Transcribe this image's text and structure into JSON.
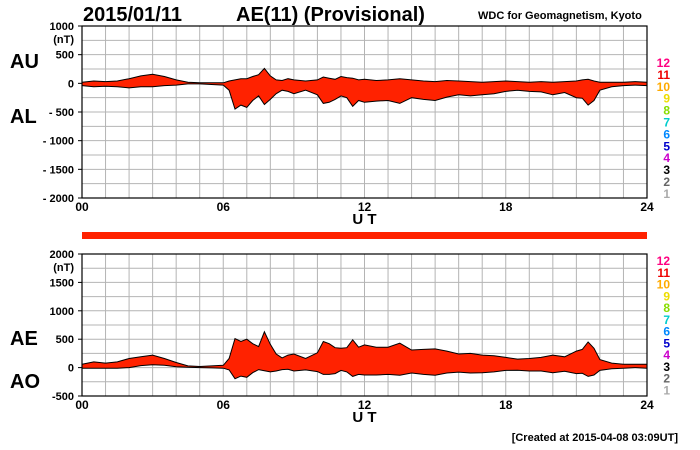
{
  "header": {
    "date": "2015/01/11",
    "title": "AE(11) (Provisional)",
    "organization": "WDC for Geomagnetism, Kyoto"
  },
  "footer": {
    "created": "[Created at 2015-04-08 03:09UT]"
  },
  "colors": {
    "fill": "#ff2200",
    "line": "#000000",
    "grid": "#b4b4b4",
    "band": "#ff2200"
  },
  "legend": [
    {
      "label": "12",
      "color": "#ff0080"
    },
    {
      "label": "11",
      "color": "#ee0000"
    },
    {
      "label": "10",
      "color": "#ffaa00"
    },
    {
      "label": "9",
      "color": "#eedd00"
    },
    {
      "label": "8",
      "color": "#88dd00"
    },
    {
      "label": "7",
      "color": "#00cccc"
    },
    {
      "label": "6",
      "color": "#0088ff"
    },
    {
      "label": "5",
      "color": "#0000cc"
    },
    {
      "label": "4",
      "color": "#cc00cc"
    },
    {
      "label": "3",
      "color": "#000000"
    },
    {
      "label": "2",
      "color": "#666666"
    },
    {
      "label": "1",
      "color": "#aaaaaa"
    }
  ],
  "chart_data": [
    {
      "type": "area",
      "labels": {
        "upper": "AU",
        "lower": "AL"
      },
      "unit": "(nT)",
      "xlabel": "U T",
      "xlim": [
        0,
        24
      ],
      "xticks": [
        "00",
        "06",
        "12",
        "18",
        "24"
      ],
      "ylim": [
        -2000,
        1000
      ],
      "yticks": [
        "1000",
        "500",
        "0",
        "- 500",
        "- 1000",
        "- 1500",
        "- 2000"
      ],
      "grid": true,
      "x": [
        0,
        0.5,
        1,
        1.5,
        2,
        2.5,
        3,
        3.5,
        4,
        4.5,
        5,
        5.5,
        6,
        6.25,
        6.5,
        6.75,
        7,
        7.25,
        7.5,
        7.75,
        8,
        8.25,
        8.5,
        8.75,
        9,
        9.5,
        10,
        10.25,
        10.5,
        10.75,
        11,
        11.25,
        11.5,
        11.75,
        12,
        12.5,
        13,
        13.5,
        14,
        14.5,
        15,
        15.5,
        16,
        16.5,
        17,
        17.5,
        18,
        18.5,
        19,
        19.5,
        20,
        20.5,
        21,
        21.25,
        21.5,
        21.75,
        22,
        22.5,
        23,
        23.5,
        24
      ],
      "series": [
        {
          "name": "AU",
          "values": [
            20,
            40,
            30,
            40,
            80,
            130,
            160,
            120,
            60,
            20,
            10,
            10,
            10,
            40,
            60,
            80,
            80,
            120,
            150,
            260,
            130,
            60,
            50,
            80,
            60,
            40,
            60,
            110,
            90,
            70,
            120,
            100,
            90,
            60,
            70,
            50,
            60,
            80,
            60,
            40,
            30,
            50,
            40,
            30,
            20,
            30,
            40,
            30,
            20,
            30,
            20,
            30,
            40,
            60,
            70,
            40,
            20,
            20,
            20,
            30,
            20
          ]
        },
        {
          "name": "AL",
          "values": [
            -40,
            -60,
            -50,
            -60,
            -80,
            -60,
            -60,
            -40,
            -30,
            -10,
            -10,
            -20,
            -30,
            -120,
            -450,
            -380,
            -420,
            -300,
            -220,
            -370,
            -280,
            -180,
            -120,
            -140,
            -180,
            -120,
            -200,
            -350,
            -330,
            -280,
            -220,
            -250,
            -400,
            -300,
            -330,
            -310,
            -300,
            -350,
            -250,
            -280,
            -300,
            -240,
            -200,
            -220,
            -200,
            -180,
            -140,
            -120,
            -140,
            -150,
            -200,
            -160,
            -250,
            -260,
            -380,
            -300,
            -120,
            -60,
            -40,
            -30,
            -40
          ]
        }
      ]
    },
    {
      "type": "area",
      "labels": {
        "upper": "AE",
        "lower": "AO"
      },
      "unit": "(nT)",
      "xlabel": "U T",
      "xlim": [
        0,
        24
      ],
      "xticks": [
        "00",
        "06",
        "12",
        "18",
        "24"
      ],
      "ylim": [
        -500,
        2000
      ],
      "yticks": [
        "2000",
        "1500",
        "1000",
        "500",
        "0",
        "-500"
      ],
      "grid": true,
      "x": [
        0,
        0.5,
        1,
        1.5,
        2,
        2.5,
        3,
        3.5,
        4,
        4.5,
        5,
        5.5,
        6,
        6.25,
        6.5,
        6.75,
        7,
        7.25,
        7.5,
        7.75,
        8,
        8.25,
        8.5,
        8.75,
        9,
        9.5,
        10,
        10.25,
        10.5,
        10.75,
        11,
        11.25,
        11.5,
        11.75,
        12,
        12.5,
        13,
        13.5,
        14,
        14.5,
        15,
        15.5,
        16,
        16.5,
        17,
        17.5,
        18,
        18.5,
        19,
        19.5,
        20,
        20.5,
        21,
        21.25,
        21.5,
        21.75,
        22,
        22.5,
        23,
        23.5,
        24
      ],
      "series": [
        {
          "name": "AE",
          "values": [
            60,
            100,
            80,
            100,
            160,
            190,
            220,
            160,
            90,
            30,
            20,
            30,
            40,
            160,
            510,
            460,
            500,
            420,
            370,
            630,
            410,
            240,
            170,
            220,
            240,
            160,
            260,
            460,
            420,
            350,
            340,
            350,
            490,
            360,
            400,
            360,
            360,
            430,
            310,
            320,
            330,
            290,
            240,
            250,
            220,
            210,
            180,
            150,
            160,
            180,
            220,
            190,
            290,
            320,
            450,
            340,
            140,
            80,
            60,
            60,
            60
          ]
        },
        {
          "name": "AO",
          "values": [
            -10,
            -10,
            -10,
            -10,
            0,
            35,
            50,
            40,
            15,
            5,
            0,
            -5,
            -10,
            -40,
            -195,
            -150,
            -170,
            -90,
            -35,
            -55,
            -75,
            -60,
            -35,
            -30,
            -60,
            -40,
            -70,
            -120,
            -120,
            -105,
            -50,
            -75,
            -155,
            -120,
            -130,
            -130,
            -120,
            -135,
            -95,
            -120,
            -135,
            -95,
            -80,
            -95,
            -90,
            -75,
            -50,
            -45,
            -60,
            -60,
            -90,
            -65,
            -105,
            -100,
            -155,
            -130,
            -50,
            -20,
            -10,
            0,
            -10
          ]
        }
      ]
    }
  ]
}
